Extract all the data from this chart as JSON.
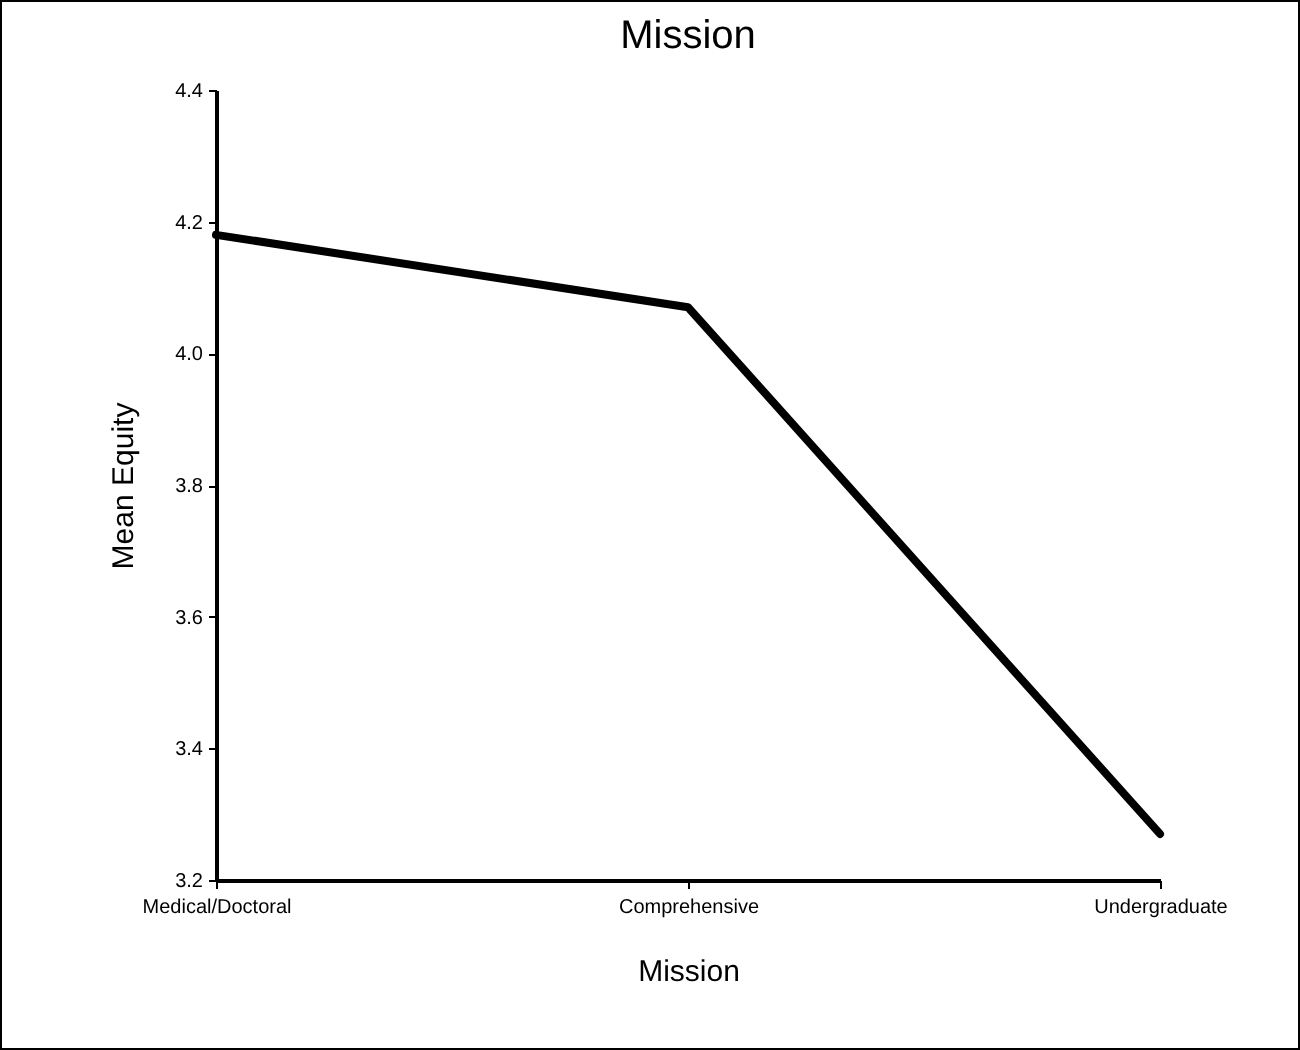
{
  "chart_data": {
    "type": "line",
    "title": "Mission",
    "xlabel": "Mission",
    "ylabel": "Mean Equity",
    "categories": [
      "Medical/Doctoral",
      "Comprehensive",
      "Undergraduate"
    ],
    "series": [
      {
        "color": "#000000",
        "values": [
          4.18,
          4.07,
          3.27
        ]
      }
    ],
    "ylim": [
      3.2,
      4.4
    ],
    "yticks": [
      3.2,
      3.4,
      3.6,
      3.8,
      {
        "value": 4,
        "label": "4.0"
      },
      4.2,
      4.4
    ]
  }
}
